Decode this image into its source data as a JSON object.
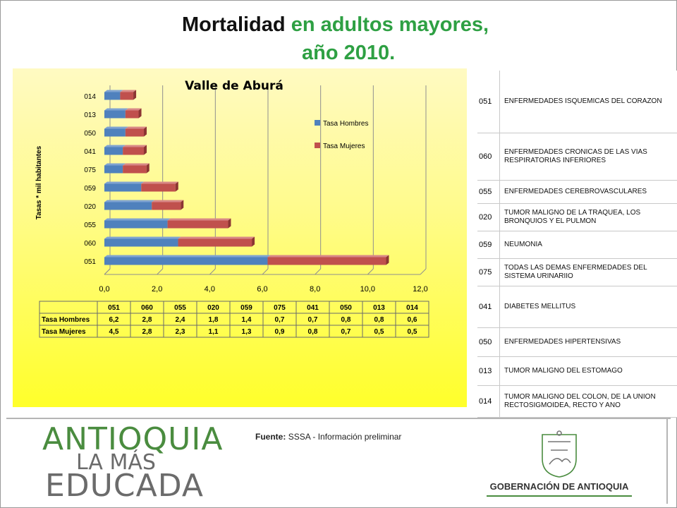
{
  "title": {
    "line1_black": "Mortalidad",
    "line1_green": "en adultos mayores,",
    "line2": "año 2010."
  },
  "chart_data": {
    "type": "bar",
    "orientation": "horizontal",
    "title": "Valle de Aburá",
    "ylabel": "Tasas * mil habitantes",
    "xlabel": "",
    "categories": [
      "051",
      "060",
      "055",
      "020",
      "059",
      "075",
      "041",
      "050",
      "013",
      "014"
    ],
    "series": [
      {
        "name": "Tasa Hombres",
        "color": "#4f81bd",
        "values": [
          6.2,
          2.8,
          2.4,
          1.8,
          1.4,
          0.7,
          0.7,
          0.8,
          0.8,
          0.6
        ]
      },
      {
        "name": "Tasa Mujeres",
        "color": "#c0504d",
        "values": [
          4.5,
          2.8,
          2.3,
          1.1,
          1.3,
          0.9,
          0.8,
          0.7,
          0.5,
          0.5
        ]
      }
    ],
    "stacked": true,
    "xlim": [
      0,
      12
    ],
    "xticks": [
      "0,0",
      "2,0",
      "4,0",
      "6,0",
      "8,0",
      "10,0",
      "12,0"
    ],
    "value_labels": {
      "Tasa Hombres": [
        "6,2",
        "2,8",
        "2,4",
        "1,8",
        "1,4",
        "0,7",
        "0,7",
        "0,8",
        "0,8",
        "0,6"
      ],
      "Tasa Mujeres": [
        "4,5",
        "2,8",
        "2,3",
        "1,1",
        "1,3",
        "0,9",
        "0,8",
        "0,7",
        "0,5",
        "0,5"
      ]
    },
    "legend_position": "right",
    "grid": "vertical"
  },
  "codes": [
    {
      "code": "051",
      "desc": "ENFERMEDADES ISQUEMICAS DEL CORAZON"
    },
    {
      "code": "060",
      "desc": "ENFERMEDADES CRONICAS DE LAS VIAS RESPIRATORIAS INFERIORES"
    },
    {
      "code": "055",
      "desc": "ENFERMEDADES CEREBROVASCULARES"
    },
    {
      "code": "020",
      "desc": "TUMOR MALIGNO DE LA TRAQUEA, LOS BRONQUIOS Y EL PULMON"
    },
    {
      "code": "059",
      "desc": "NEUMONIA"
    },
    {
      "code": "075",
      "desc": "TODAS LAS DEMAS ENFERMEDADES DEL SISTEMA URINARIIO"
    },
    {
      "code": "041",
      "desc": "DIABETES MELLITUS"
    },
    {
      "code": "050",
      "desc": "ENFERMEDADES HIPERTENSIVAS"
    },
    {
      "code": "013",
      "desc": "TUMOR MALIGNO DEL ESTOMAGO"
    },
    {
      "code": "014",
      "desc": "TUMOR MALIGNO DEL COLON, DE LA UNION RECTOSIGMOIDEA, RECTO Y ANO"
    }
  ],
  "footer": {
    "fuente_label": "Fuente:",
    "fuente_text": "SSSA - Información preliminar",
    "logo_line1": "ANTIOQUIA",
    "logo_line2": "LA MÁS",
    "logo_line3": "EDUCADA",
    "gob_name": "GOBERNACIÓN DE ANTIOQUIA"
  }
}
